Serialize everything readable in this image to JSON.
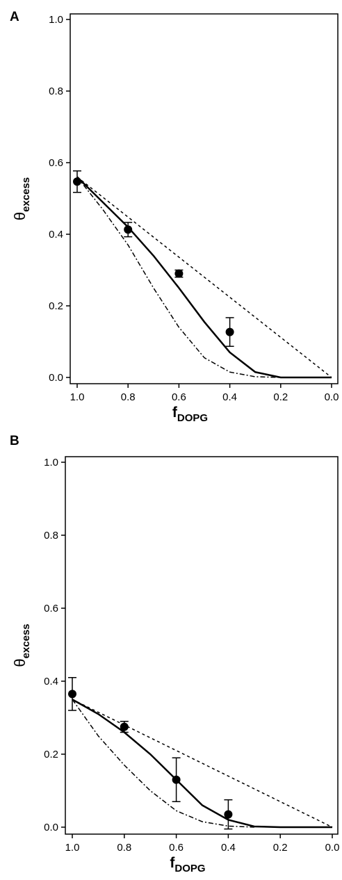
{
  "chart_data": [
    {
      "type": "scatter",
      "panel_label": "A",
      "x_label": "f",
      "x_label_sub": "DOPG",
      "y_label": "θ",
      "y_label_sub": "excess",
      "xlim": [
        1.0,
        0.0
      ],
      "ylim": [
        0,
        1
      ],
      "xticks": [
        {
          "value": 1,
          "label": "1.0"
        },
        0.8,
        0.6,
        0.4,
        0.2,
        {
          "value": 0,
          "label": "0.0"
        }
      ],
      "yticks": [
        {
          "value": 0,
          "label": "0.0"
        },
        0.2,
        0.4,
        0.6,
        0.8,
        {
          "value": 1,
          "label": "1.0"
        }
      ],
      "series": [
        {
          "style": "markers",
          "color": "#000",
          "x": [
            1.0,
            0.8,
            0.6,
            0.4
          ],
          "values": [
            0.547,
            0.413,
            0.29,
            0.127
          ],
          "errors": [
            0.03,
            0.02,
            0.01,
            0.04
          ]
        },
        {
          "style": "solid",
          "color": "#000",
          "x": [
            1.0,
            0.9,
            0.8,
            0.7,
            0.6,
            0.5,
            0.4,
            0.3,
            0.2,
            0.1,
            0.0
          ],
          "values": [
            0.56,
            0.49,
            0.42,
            0.34,
            0.25,
            0.155,
            0.07,
            0.015,
            0.0,
            0.0,
            0.0
          ]
        },
        {
          "style": "dashed",
          "color": "#000",
          "x": [
            1.0,
            0.0
          ],
          "values": [
            0.56,
            0.0
          ]
        },
        {
          "style": "dash-dot",
          "color": "#000",
          "x": [
            1.0,
            0.9,
            0.8,
            0.7,
            0.6,
            0.5,
            0.4,
            0.3,
            0.2
          ],
          "values": [
            0.56,
            0.47,
            0.37,
            0.25,
            0.14,
            0.055,
            0.015,
            0.002,
            0.0
          ]
        }
      ]
    },
    {
      "type": "scatter",
      "panel_label": "B",
      "x_label": "f",
      "x_label_sub": "DOPG",
      "y_label": "θ",
      "y_label_sub": "excess",
      "xlim": [
        1.0,
        0.0
      ],
      "ylim": [
        0,
        1
      ],
      "xticks": [
        {
          "value": 1,
          "label": "1.0"
        },
        0.8,
        0.6,
        0.4,
        0.2,
        {
          "value": 0,
          "label": "0.0"
        }
      ],
      "yticks": [
        {
          "value": 0,
          "label": "0.0"
        },
        0.2,
        0.4,
        0.6,
        0.8,
        {
          "value": 1,
          "label": "1.0"
        }
      ],
      "series": [
        {
          "style": "markers",
          "color": "#000",
          "x": [
            1.0,
            0.8,
            0.6,
            0.4
          ],
          "values": [
            0.365,
            0.275,
            0.13,
            0.035
          ],
          "errors": [
            0.045,
            0.015,
            0.06,
            0.04
          ]
        },
        {
          "style": "solid",
          "color": "#000",
          "x": [
            1.0,
            0.9,
            0.8,
            0.7,
            0.6,
            0.5,
            0.4,
            0.3,
            0.2,
            0.0
          ],
          "values": [
            0.35,
            0.31,
            0.26,
            0.2,
            0.13,
            0.06,
            0.02,
            0.002,
            0.0,
            0.0
          ]
        },
        {
          "style": "dashed",
          "color": "#000",
          "x": [
            1.0,
            0.0
          ],
          "values": [
            0.35,
            0.0
          ]
        },
        {
          "style": "dash-dot",
          "color": "#000",
          "x": [
            1.0,
            0.9,
            0.8,
            0.7,
            0.6,
            0.5,
            0.4,
            0.3
          ],
          "values": [
            0.35,
            0.25,
            0.17,
            0.1,
            0.045,
            0.015,
            0.003,
            0.0
          ]
        }
      ]
    }
  ]
}
